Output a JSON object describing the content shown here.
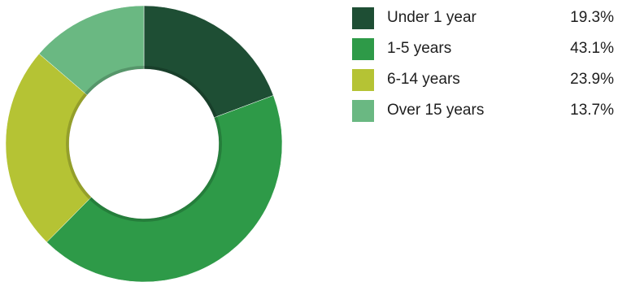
{
  "chart_data": {
    "type": "pie",
    "variant": "donut",
    "categories": [
      "Under 1 year",
      "1-5 years",
      "6-14 years",
      "Over 15 years"
    ],
    "values": [
      19.3,
      43.1,
      23.9,
      13.7
    ],
    "value_labels": [
      "19.3%",
      "43.1%",
      "23.9%",
      "13.7%"
    ],
    "colors": [
      "#1e4e34",
      "#2e9a48",
      "#b5c334",
      "#6ab882"
    ],
    "title": "",
    "legend_position": "right",
    "start_angle": "top",
    "direction": "clockwise"
  }
}
